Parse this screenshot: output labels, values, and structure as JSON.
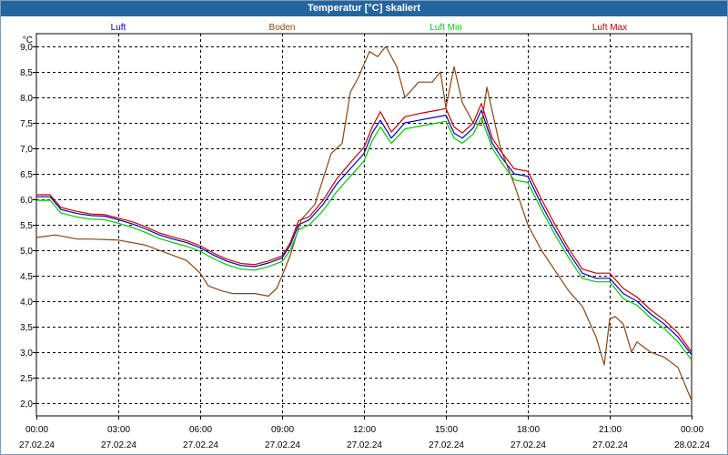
{
  "window": {
    "title": "Temperatur [°C] skaliert"
  },
  "chart_data": {
    "type": "line",
    "title": "Temperatur [°C] skaliert",
    "ylabel": "°C",
    "xlabel": "",
    "ylim": [
      1.75,
      9.25
    ],
    "xlim": [
      0,
      24
    ],
    "y_ticks": [
      2.0,
      2.5,
      3.0,
      3.5,
      4.0,
      4.5,
      5.0,
      5.5,
      6.0,
      6.5,
      7.0,
      7.5,
      8.0,
      8.5,
      9.0
    ],
    "y_tick_labels": [
      "2,0",
      "2,5",
      "3,0",
      "3,5",
      "4,0",
      "4,5",
      "5,0",
      "5,5",
      "6,0",
      "6,5",
      "7,0",
      "7,5",
      "8,0",
      "8,5",
      "9,0"
    ],
    "x_ticks": [
      0,
      3,
      6,
      9,
      12,
      15,
      18,
      21,
      24
    ],
    "x_tick_times": [
      "00:00",
      "03:00",
      "06:00",
      "09:00",
      "12:00",
      "15:00",
      "18:00",
      "21:00",
      "00:00"
    ],
    "x_tick_dates": [
      "27.02.24",
      "27.02.24",
      "27.02.24",
      "27.02.24",
      "27.02.24",
      "27.02.24",
      "27.02.24",
      "27.02.24",
      "28.02.24"
    ],
    "grid": true,
    "legend_position": "top",
    "series": [
      {
        "name": "Luft",
        "color": "#0000c8",
        "x": [
          0,
          0.5,
          0.9,
          1.5,
          2,
          2.5,
          3,
          3.5,
          4,
          4.5,
          5,
          5.5,
          6,
          6.5,
          7,
          7.5,
          8,
          8.5,
          9,
          9.3,
          9.6,
          10,
          10.5,
          11,
          11.5,
          12,
          12.3,
          12.6,
          13,
          13.5,
          14,
          14.5,
          15,
          15.3,
          15.6,
          16,
          16.3,
          16.7,
          17,
          17.5,
          18,
          18.5,
          19,
          19.5,
          20,
          20.5,
          21,
          21.5,
          22,
          22.5,
          23,
          23.5,
          24
        ],
        "values": [
          6.05,
          6.05,
          5.8,
          5.72,
          5.68,
          5.67,
          5.6,
          5.52,
          5.42,
          5.3,
          5.22,
          5.15,
          5.05,
          4.9,
          4.78,
          4.7,
          4.68,
          4.75,
          4.85,
          5.1,
          5.5,
          5.6,
          5.9,
          6.3,
          6.6,
          6.9,
          7.3,
          7.55,
          7.2,
          7.5,
          7.55,
          7.6,
          7.65,
          7.3,
          7.2,
          7.4,
          7.75,
          7.1,
          6.85,
          6.5,
          6.45,
          5.9,
          5.4,
          4.95,
          4.55,
          4.45,
          4.45,
          4.15,
          4.0,
          3.75,
          3.55,
          3.3,
          2.95
        ]
      },
      {
        "name": "Boden",
        "color": "#8b4513",
        "x": [
          0,
          0.7,
          1.5,
          2,
          3,
          4,
          4.5,
          5,
          5.5,
          6,
          6.3,
          6.8,
          7.2,
          7.5,
          8,
          8.5,
          8.8,
          9,
          9.3,
          9.7,
          10.2,
          10.5,
          10.8,
          11.2,
          11.5,
          11.8,
          12.2,
          12.5,
          12.8,
          13.2,
          13.5,
          14,
          14.5,
          14.8,
          15,
          15.3,
          15.6,
          16,
          16.3,
          16.5,
          17,
          17.5,
          18,
          18.5,
          19,
          19.5,
          20,
          20.5,
          20.8,
          21,
          21.2,
          21.5,
          21.8,
          22,
          22.5,
          23,
          23.5,
          24
        ],
        "values": [
          5.25,
          5.3,
          5.22,
          5.22,
          5.2,
          5.1,
          5.0,
          4.9,
          4.8,
          4.55,
          4.3,
          4.2,
          4.15,
          4.15,
          4.15,
          4.1,
          4.25,
          4.5,
          4.9,
          5.6,
          5.9,
          6.4,
          6.9,
          7.1,
          8.1,
          8.4,
          8.9,
          8.8,
          9.0,
          8.6,
          8.0,
          8.3,
          8.3,
          8.5,
          7.8,
          8.6,
          7.9,
          7.5,
          7.45,
          8.2,
          7.0,
          6.3,
          5.5,
          5.0,
          4.6,
          4.2,
          3.9,
          3.3,
          2.75,
          3.65,
          3.7,
          3.55,
          3.0,
          3.2,
          3.0,
          2.9,
          2.7,
          2.05
        ]
      },
      {
        "name": "Luft Min",
        "color": "#00c800",
        "x": [
          0,
          0.5,
          0.9,
          1.5,
          2,
          2.5,
          3,
          3.5,
          4,
          4.5,
          5,
          5.5,
          6,
          6.5,
          7,
          7.5,
          8,
          8.5,
          9,
          9.3,
          9.6,
          10,
          10.5,
          11,
          11.5,
          12,
          12.3,
          12.6,
          13,
          13.5,
          14,
          14.5,
          15,
          15.3,
          15.6,
          16,
          16.3,
          16.7,
          17,
          17.5,
          18,
          18.5,
          19,
          19.5,
          20,
          20.5,
          21,
          21.5,
          22,
          22.5,
          23,
          23.5,
          24
        ],
        "values": [
          5.98,
          5.98,
          5.73,
          5.65,
          5.61,
          5.6,
          5.53,
          5.45,
          5.35,
          5.23,
          5.15,
          5.08,
          4.98,
          4.83,
          4.71,
          4.63,
          4.61,
          4.68,
          4.78,
          5.0,
          5.4,
          5.5,
          5.78,
          6.15,
          6.45,
          6.75,
          7.15,
          7.42,
          7.1,
          7.38,
          7.43,
          7.48,
          7.53,
          7.2,
          7.1,
          7.28,
          7.6,
          7.0,
          6.75,
          6.38,
          6.33,
          5.8,
          5.3,
          4.85,
          4.45,
          4.38,
          4.38,
          4.05,
          3.92,
          3.67,
          3.46,
          3.2,
          2.85
        ]
      },
      {
        "name": "Luft Max",
        "color": "#c80000",
        "x": [
          0,
          0.5,
          0.9,
          1.5,
          2,
          2.5,
          3,
          3.5,
          4,
          4.5,
          5,
          5.5,
          6,
          6.5,
          7,
          7.5,
          8,
          8.5,
          9,
          9.3,
          9.6,
          10,
          10.5,
          11,
          11.5,
          12,
          12.3,
          12.6,
          13,
          13.5,
          14,
          14.5,
          15,
          15.3,
          15.6,
          16,
          16.3,
          16.7,
          17,
          17.5,
          18,
          18.5,
          19,
          19.5,
          20,
          20.5,
          21,
          21.5,
          22,
          22.5,
          23,
          23.5,
          24
        ],
        "values": [
          6.09,
          6.09,
          5.84,
          5.76,
          5.71,
          5.7,
          5.63,
          5.56,
          5.46,
          5.34,
          5.26,
          5.19,
          5.09,
          4.94,
          4.82,
          4.74,
          4.72,
          4.79,
          4.89,
          5.15,
          5.58,
          5.66,
          5.98,
          6.4,
          6.72,
          7.02,
          7.42,
          7.72,
          7.32,
          7.62,
          7.68,
          7.73,
          7.78,
          7.42,
          7.3,
          7.5,
          7.88,
          7.2,
          6.95,
          6.6,
          6.55,
          6.0,
          5.5,
          5.03,
          4.63,
          4.55,
          4.55,
          4.25,
          4.08,
          3.83,
          3.63,
          3.38,
          3.0
        ]
      }
    ]
  }
}
